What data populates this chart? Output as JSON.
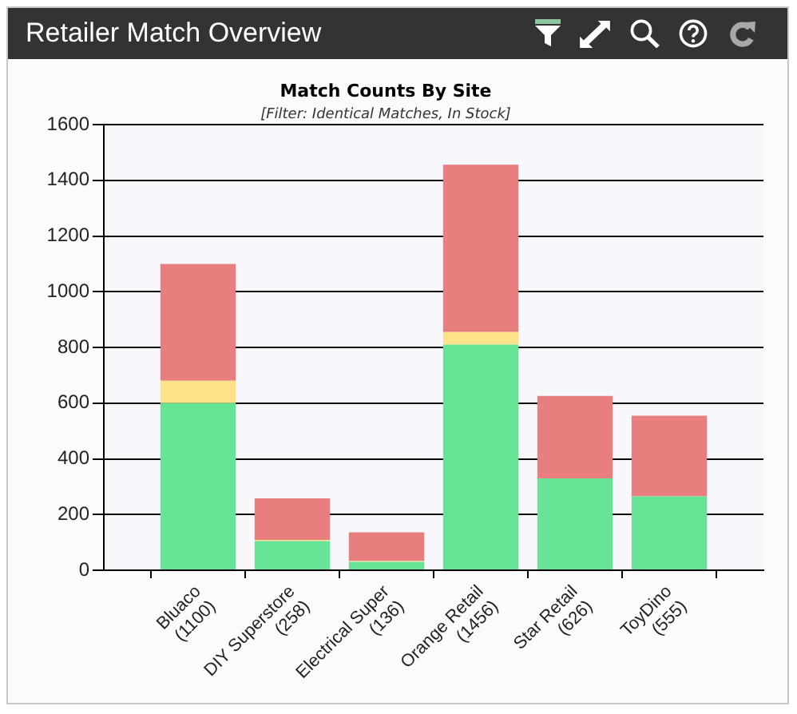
{
  "chart_data": {
    "type": "bar",
    "title": "Match Counts By Site",
    "subtitle": "[Filter: Identical Matches, In Stock]",
    "annotations": [
      "Retailer Match Overview"
    ],
    "categories": [
      "Bluaco (1100)",
      "DIY Superstore (258)",
      "Electrical Super (136)",
      "Orange Retail (1456)",
      "Star Retail (626)",
      "ToyDino (555)"
    ],
    "stacked": true,
    "series": [
      {
        "color": "#67e395",
        "values": [
          600,
          105,
          30,
          810,
          330,
          265
        ]
      },
      {
        "color": "#fde28a",
        "values": [
          80,
          4,
          3,
          45,
          null,
          null
        ]
      },
      {
        "color": "#e87e7e",
        "values": [
          420,
          149,
          103,
          601,
          296,
          290
        ]
      }
    ],
    "ylim": [
      0,
      1600
    ],
    "yticks": [
      0,
      200,
      400,
      600,
      800,
      1000,
      1200,
      1400,
      1600
    ],
    "grid": "y"
  }
}
